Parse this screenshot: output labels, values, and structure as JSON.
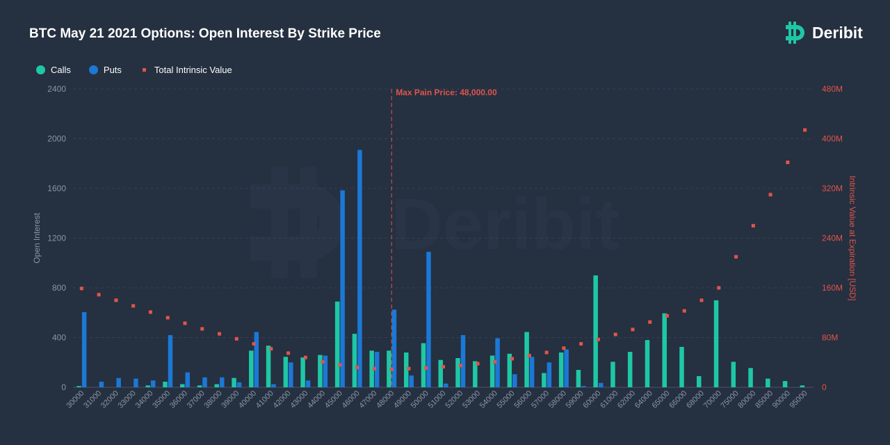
{
  "header": {
    "title": "BTC May 21 2021 Options: Open Interest By Strike Price",
    "brand": "Deribit",
    "watermark": "Deribit"
  },
  "legend": {
    "calls": "Calls",
    "puts": "Puts",
    "intrinsic": "Total Intrinsic Value"
  },
  "colors": {
    "calls": "#1ec7a6",
    "puts": "#1b78d6",
    "intrinsic": "#e0554b",
    "background": "#253040",
    "axis_text": "#8a94a6"
  },
  "chart_data": {
    "type": "bar",
    "title": "BTC May 21 2021 Options: Open Interest By Strike Price",
    "xlabel": "",
    "ylabel": "Open Interest",
    "y2label": "Intrinsic Value at Expiration [USD]",
    "ylim": [
      0,
      2400
    ],
    "y2lim": [
      0,
      480
    ],
    "yticks": [
      "0",
      "400",
      "800",
      "1200",
      "1600",
      "2000",
      "2400"
    ],
    "y2ticks": [
      "0",
      "80M",
      "160M",
      "240M",
      "320M",
      "400M",
      "480M"
    ],
    "grid": true,
    "legend_position": "top-left",
    "annotation": {
      "label": "Max Pain Price: 48,000.00",
      "x": "48000"
    },
    "categories": [
      "30000",
      "31000",
      "32000",
      "33000",
      "34000",
      "35000",
      "36000",
      "37000",
      "38000",
      "39000",
      "40000",
      "41000",
      "42000",
      "43000",
      "44000",
      "45000",
      "46000",
      "47000",
      "48000",
      "49000",
      "50000",
      "51000",
      "52000",
      "53000",
      "54000",
      "55000",
      "56000",
      "57000",
      "58000",
      "59000",
      "60000",
      "61000",
      "62000",
      "64000",
      "65000",
      "66000",
      "68000",
      "70000",
      "75000",
      "80000",
      "85000",
      "90000",
      "95000"
    ],
    "series": [
      {
        "name": "Calls",
        "kind": "bar",
        "axis": "left",
        "values": [
          10,
          0,
          0,
          0,
          15,
          45,
          25,
          15,
          25,
          75,
          295,
          335,
          245,
          240,
          260,
          690,
          430,
          295,
          295,
          280,
          355,
          220,
          235,
          210,
          255,
          270,
          445,
          115,
          280,
          140,
          900,
          205,
          285,
          380,
          595,
          325,
          90,
          700,
          205,
          155,
          70,
          50,
          15
        ]
      },
      {
        "name": "Puts",
        "kind": "bar",
        "axis": "left",
        "values": [
          605,
          45,
          75,
          70,
          55,
          420,
          120,
          80,
          80,
          40,
          445,
          25,
          200,
          55,
          255,
          1585,
          1910,
          285,
          625,
          95,
          1090,
          30,
          420,
          0,
          395,
          105,
          245,
          200,
          305,
          10,
          35,
          0,
          0,
          0,
          0,
          0,
          0,
          0,
          0,
          0,
          0,
          0,
          0
        ]
      },
      {
        "name": "Total Intrinsic Value",
        "kind": "scatter",
        "axis": "right",
        "unit": "M USD",
        "values": [
          159,
          149,
          140,
          131,
          121,
          112,
          103,
          94,
          86,
          78,
          70,
          62,
          55,
          48,
          41,
          36,
          32,
          30,
          29,
          30,
          31,
          33,
          35,
          38,
          41,
          46,
          51,
          56,
          63,
          70,
          77,
          85,
          93,
          105,
          115,
          123,
          140,
          160,
          210,
          260,
          310,
          362,
          414
        ]
      }
    ]
  }
}
